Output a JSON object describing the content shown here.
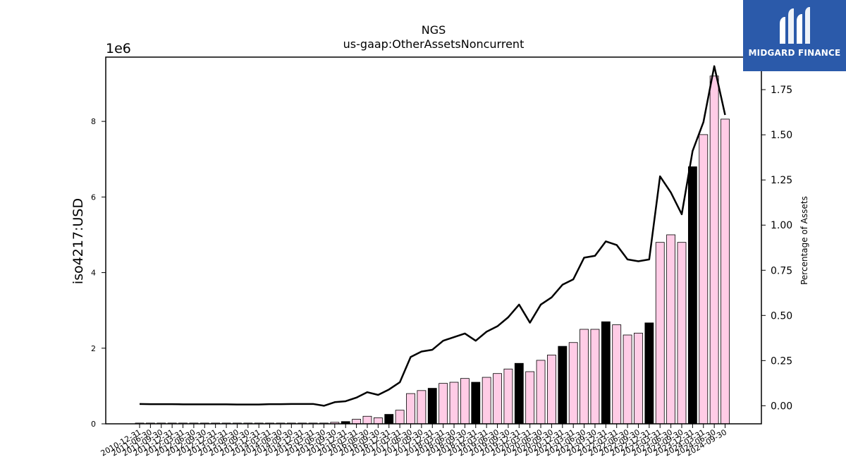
{
  "brand": {
    "name": "MIDGARD FINANCE",
    "color": "#2b5aaa"
  },
  "chart_data": {
    "type": "bar",
    "title": "NGS",
    "subtitle": "us-gaap:OtherAssetsNoncurrent",
    "ylabel": "iso4217:USD",
    "y_offset_label": "1e6",
    "y2label": "Percentage of Assets",
    "ylim": [
      0,
      9.7
    ],
    "y2lim": [
      -0.1,
      1.93
    ],
    "y_ticks": [
      0,
      2,
      4,
      6,
      8
    ],
    "y2_ticks": [
      0.0,
      0.25,
      0.5,
      0.75,
      1.0,
      1.25,
      1.5,
      1.75
    ],
    "grid": false,
    "colors": {
      "bar_default": "#ffcce6",
      "bar_highlight": "#000000",
      "line": "#000000"
    },
    "categories": [
      "2010-12-31",
      "2011-06-30",
      "2011-09-30",
      "2011-12-31",
      "2012-03-31",
      "2012-06-30",
      "2012-09-30",
      "2012-12-31",
      "2013-03-31",
      "2013-06-30",
      "2013-09-30",
      "2013-12-31",
      "2014-03-31",
      "2014-06-30",
      "2014-09-30",
      "2014-12-31",
      "2015-03-31",
      "2015-06-30",
      "2015-09-30",
      "2015-12-31",
      "2016-03-31",
      "2016-06-30",
      "2016-09-30",
      "2016-12-31",
      "2017-03-31",
      "2017-06-30",
      "2017-09-30",
      "2017-12-31",
      "2018-03-31",
      "2018-06-30",
      "2018-09-30",
      "2018-12-31",
      "2019-03-31",
      "2019-06-30",
      "2019-09-30",
      "2019-12-31",
      "2020-03-31",
      "2020-06-30",
      "2020-09-30",
      "2020-12-31",
      "2021-03-31",
      "2021-06-30",
      "2021-09-30",
      "2021-12-31",
      "2022-03-31",
      "2022-06-30",
      "2022-09-30",
      "2022-12-31",
      "2023-03-31",
      "2023-06-30",
      "2023-09-30",
      "2023-12-31",
      "2024-03-31",
      "2024-06-30",
      "2024-09-30"
    ],
    "series": [
      {
        "kind": "bar",
        "axis": "left",
        "values": [
          0.02,
          0.02,
          0.02,
          0.02,
          0.02,
          0.02,
          0.02,
          0.02,
          0.02,
          0.02,
          0.02,
          0.02,
          0.02,
          0.02,
          0.02,
          0.02,
          0.02,
          0.02,
          0.04,
          0.06,
          0.12,
          0.2,
          0.16,
          0.25,
          0.36,
          0.8,
          0.88,
          0.94,
          1.07,
          1.1,
          1.2,
          1.1,
          1.23,
          1.33,
          1.45,
          1.6,
          1.38,
          1.68,
          1.82,
          2.05,
          2.15,
          2.5,
          2.5,
          2.7,
          2.62,
          2.35,
          2.4,
          2.67,
          4.8,
          5.0,
          4.8,
          6.8,
          7.65,
          9.2,
          8.06
        ],
        "highlight": [
          false,
          false,
          false,
          false,
          false,
          false,
          false,
          false,
          false,
          false,
          false,
          false,
          false,
          false,
          false,
          false,
          false,
          false,
          false,
          true,
          false,
          false,
          false,
          true,
          false,
          false,
          false,
          true,
          false,
          false,
          false,
          true,
          false,
          false,
          false,
          true,
          false,
          false,
          false,
          true,
          false,
          false,
          false,
          true,
          false,
          false,
          false,
          true,
          false,
          false,
          false,
          true,
          false,
          false,
          false
        ]
      },
      {
        "kind": "line",
        "axis": "right",
        "values": [
          0.01,
          0.009,
          0.009,
          0.009,
          0.008,
          0.008,
          0.008,
          0.008,
          0.008,
          0.007,
          0.007,
          0.007,
          0.009,
          0.009,
          0.01,
          0.01,
          0.01,
          0.0,
          0.02,
          0.025,
          0.045,
          0.075,
          0.06,
          0.09,
          0.13,
          0.27,
          0.3,
          0.31,
          0.36,
          0.38,
          0.4,
          0.36,
          0.41,
          0.44,
          0.49,
          0.56,
          0.46,
          0.56,
          0.6,
          0.67,
          0.7,
          0.82,
          0.83,
          0.91,
          0.89,
          0.81,
          0.8,
          0.81,
          1.27,
          1.18,
          1.06,
          1.41,
          1.57,
          1.88,
          1.61
        ]
      }
    ]
  }
}
